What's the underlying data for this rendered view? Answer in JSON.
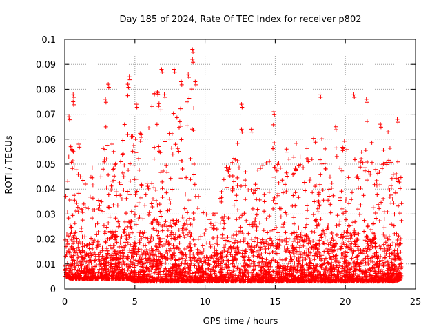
{
  "chart_data": {
    "type": "scatter",
    "title": "Day 185 of 2024, Rate Of TEC Index for receiver p802",
    "xlabel": "GPS time / hours",
    "ylabel": "ROTI / TECUs",
    "xlim": [
      0,
      25
    ],
    "ylim": [
      0,
      0.1
    ],
    "xticks": [
      0,
      5,
      10,
      15,
      20,
      25
    ],
    "xtick_labels": [
      "0",
      "5",
      "10",
      "15",
      "20",
      "25"
    ],
    "yticks": [
      0,
      0.01,
      0.02,
      0.03,
      0.04,
      0.05,
      0.06,
      0.07,
      0.08,
      0.09,
      0.1
    ],
    "ytick_labels": [
      "0",
      "0.01",
      "0.02",
      "0.03",
      "0.04",
      "0.05",
      "0.06",
      "0.07",
      "0.08",
      "0.09",
      "0.1"
    ],
    "grid": true,
    "marker": "+",
    "color": "#ff0000",
    "data_range_x": [
      0,
      24
    ],
    "envelope": {
      "x": [
        0,
        0.5,
        1,
        1.5,
        2,
        2.5,
        3,
        3.5,
        4,
        4.5,
        5,
        5.5,
        6,
        6.5,
        7,
        7.5,
        8,
        8.5,
        9,
        9.5,
        10,
        10.5,
        11,
        11.5,
        12,
        12.5,
        13,
        13.5,
        14,
        14.5,
        15,
        15.5,
        16,
        16.5,
        17,
        17.5,
        18,
        18.5,
        19,
        19.5,
        20,
        20.5,
        21,
        21.5,
        22,
        22.5,
        23,
        23.5,
        24
      ],
      "upper": [
        0.034,
        0.07,
        0.045,
        0.045,
        0.05,
        0.048,
        0.075,
        0.055,
        0.055,
        0.08,
        0.062,
        0.068,
        0.065,
        0.085,
        0.07,
        0.082,
        0.075,
        0.07,
        0.094,
        0.04,
        0.032,
        0.035,
        0.035,
        0.05,
        0.052,
        0.07,
        0.045,
        0.055,
        0.05,
        0.06,
        0.068,
        0.05,
        0.055,
        0.06,
        0.065,
        0.05,
        0.075,
        0.06,
        0.06,
        0.055,
        0.06,
        0.078,
        0.05,
        0.075,
        0.055,
        0.05,
        0.065,
        0.06,
        0.045
      ],
      "lower": [
        0.005,
        0.004,
        0.004,
        0.004,
        0.004,
        0.004,
        0.004,
        0.004,
        0.004,
        0.004,
        0.003,
        0.003,
        0.003,
        0.003,
        0.003,
        0.003,
        0.003,
        0.003,
        0.003,
        0.003,
        0.003,
        0.003,
        0.003,
        0.003,
        0.003,
        0.003,
        0.003,
        0.003,
        0.003,
        0.003,
        0.003,
        0.003,
        0.003,
        0.003,
        0.003,
        0.003,
        0.003,
        0.003,
        0.003,
        0.003,
        0.003,
        0.003,
        0.003,
        0.003,
        0.003,
        0.003,
        0.003,
        0.003,
        0.004
      ]
    },
    "highlights": [
      {
        "x": 0.3,
        "y": 0.069
      },
      {
        "x": 0.6,
        "y": 0.075
      },
      {
        "x": 0.6,
        "y": 0.078
      },
      {
        "x": 1.0,
        "y": 0.058
      },
      {
        "x": 2.9,
        "y": 0.076
      },
      {
        "x": 3.1,
        "y": 0.082
      },
      {
        "x": 4.5,
        "y": 0.082
      },
      {
        "x": 4.6,
        "y": 0.085
      },
      {
        "x": 5.1,
        "y": 0.074
      },
      {
        "x": 6.6,
        "y": 0.079
      },
      {
        "x": 6.9,
        "y": 0.088
      },
      {
        "x": 7.1,
        "y": 0.078
      },
      {
        "x": 7.8,
        "y": 0.088
      },
      {
        "x": 8.3,
        "y": 0.083
      },
      {
        "x": 8.8,
        "y": 0.086
      },
      {
        "x": 9.1,
        "y": 0.096
      },
      {
        "x": 9.1,
        "y": 0.092
      },
      {
        "x": 9.3,
        "y": 0.083
      },
      {
        "x": 12.6,
        "y": 0.074
      },
      {
        "x": 12.6,
        "y": 0.064
      },
      {
        "x": 13.3,
        "y": 0.064
      },
      {
        "x": 14.9,
        "y": 0.071
      },
      {
        "x": 15.8,
        "y": 0.056
      },
      {
        "x": 18.2,
        "y": 0.078
      },
      {
        "x": 19.3,
        "y": 0.065
      },
      {
        "x": 20.6,
        "y": 0.078
      },
      {
        "x": 21.5,
        "y": 0.076
      },
      {
        "x": 22.5,
        "y": 0.066
      },
      {
        "x": 23.7,
        "y": 0.068
      },
      {
        "x": 23.8,
        "y": 0.044
      }
    ]
  }
}
